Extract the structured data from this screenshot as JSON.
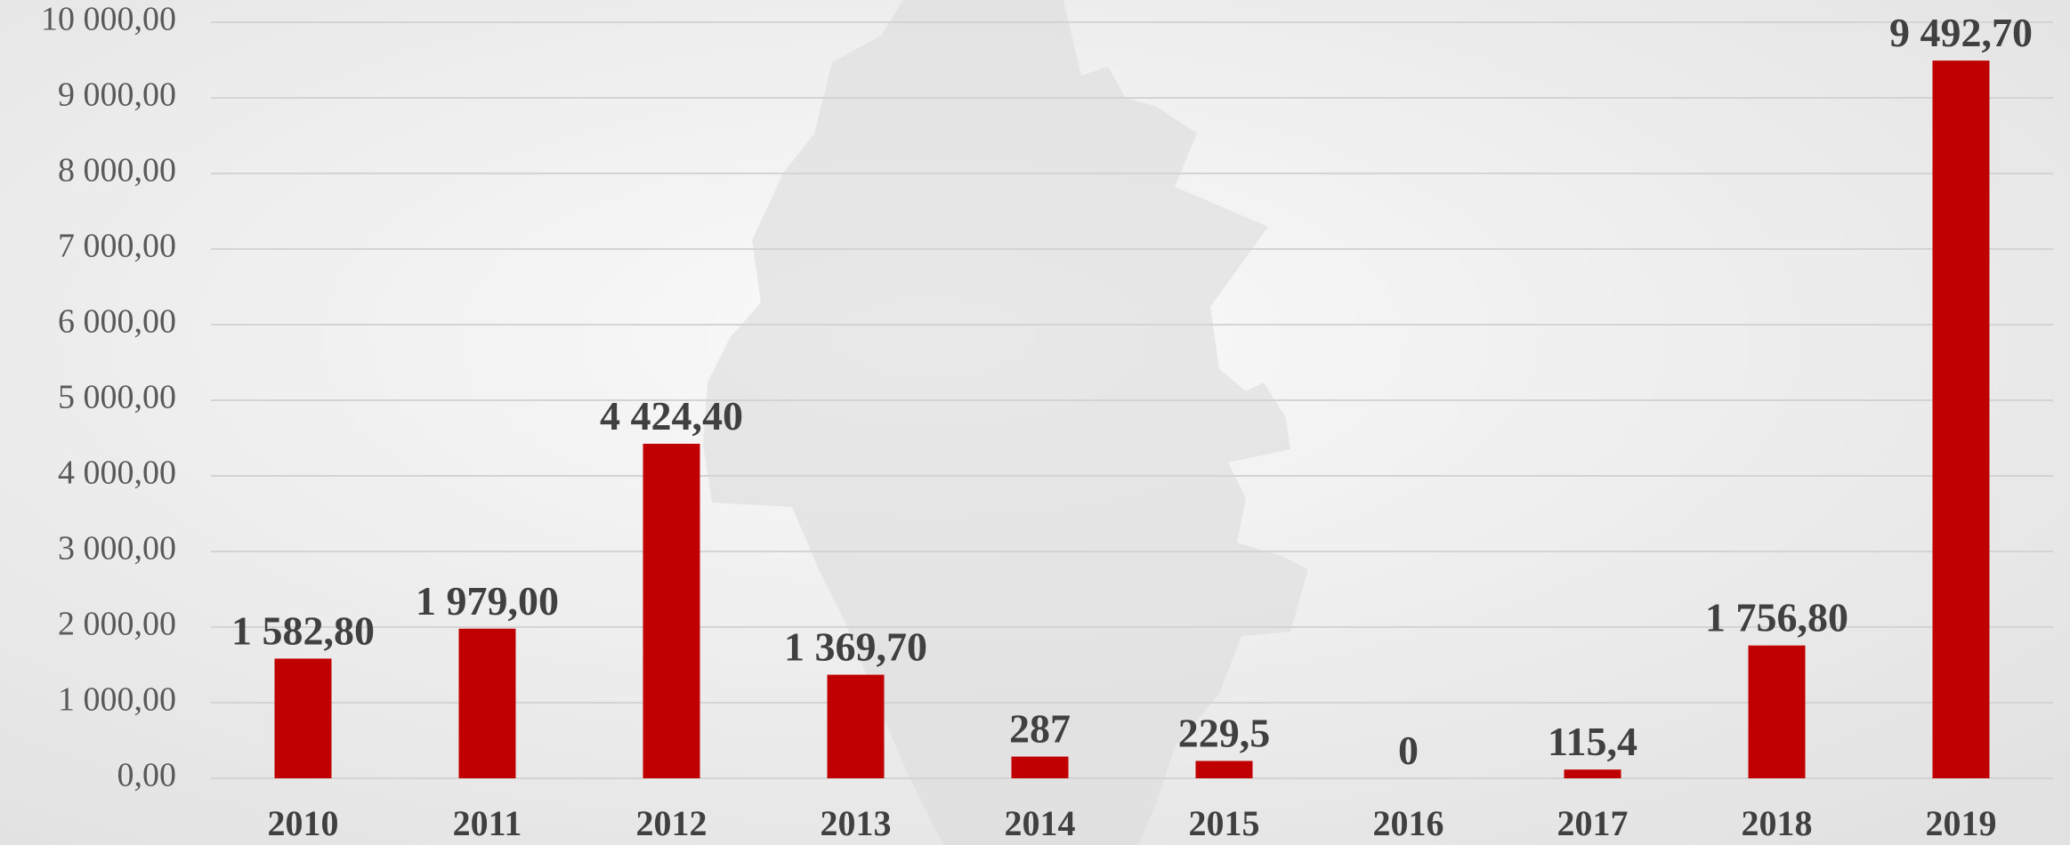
{
  "chart_data": {
    "type": "bar",
    "categories": [
      "2010",
      "2011",
      "2012",
      "2013",
      "2014",
      "2015",
      "2016",
      "2017",
      "2018",
      "2019"
    ],
    "values": [
      1582.8,
      1979,
      4424.4,
      1369.7,
      287,
      229.5,
      0,
      115.4,
      1756.8,
      9492.7
    ],
    "value_labels": [
      "1 582,80",
      "1 979,00",
      "4 424,40",
      "1 369,70",
      "287",
      "229,5",
      "0",
      "115,4",
      "1 756,80",
      "9 492,70"
    ],
    "color": "#c00000",
    "ylim": [
      0,
      10000
    ],
    "yticks": [
      {
        "value": 0,
        "label": "0,00"
      },
      {
        "value": 1000,
        "label": "1 000,00"
      },
      {
        "value": 2000,
        "label": "2 000,00"
      },
      {
        "value": 3000,
        "label": "3 000,00"
      },
      {
        "value": 4000,
        "label": "4 000,00"
      },
      {
        "value": 5000,
        "label": "5 000,00"
      },
      {
        "value": 6000,
        "label": "6 000,00"
      },
      {
        "value": 7000,
        "label": "7 000,00"
      },
      {
        "value": 8000,
        "label": "8 000,00"
      },
      {
        "value": 9000,
        "label": "9 000,00"
      },
      {
        "value": 10000,
        "label": "10 000,00"
      }
    ],
    "grid": true
  }
}
